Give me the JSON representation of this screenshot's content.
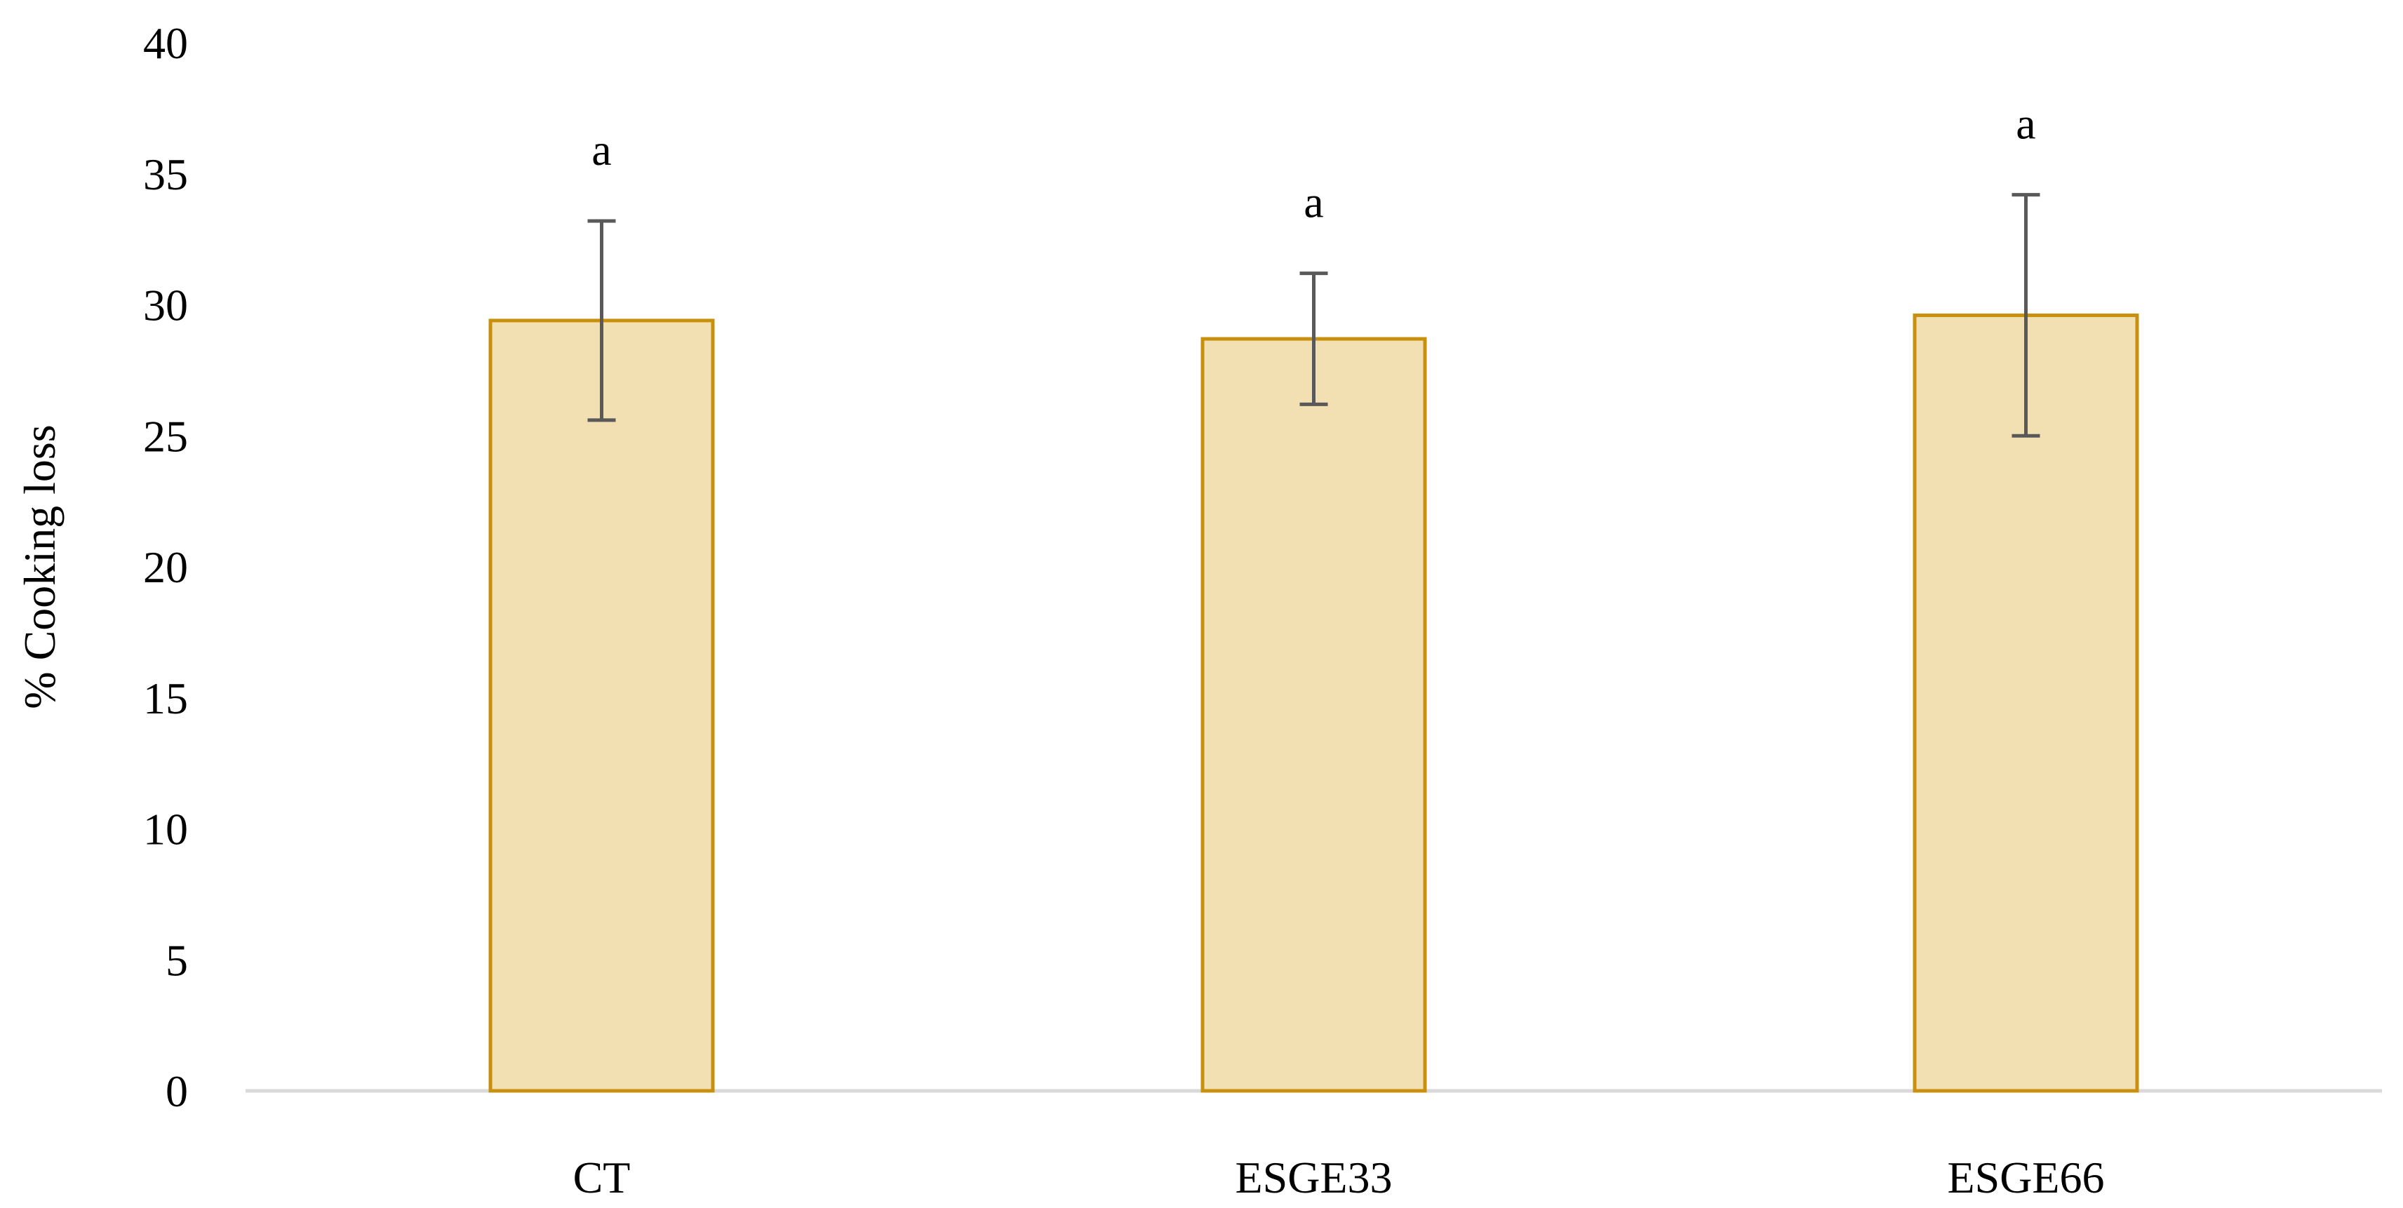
{
  "chart_data": {
    "type": "bar",
    "title": "",
    "xlabel": "",
    "ylabel": "% Cooking loss",
    "ylim": [
      0,
      40
    ],
    "yticks": [
      "0",
      "5",
      "10",
      "15",
      "20",
      "25",
      "30",
      "35",
      "40"
    ],
    "grid": false,
    "legend": "none",
    "categories": [
      "CT",
      "ESGE33",
      "ESGE66"
    ],
    "values": [
      29.4,
      28.7,
      29.6
    ],
    "error": [
      3.8,
      2.5,
      4.6
    ],
    "significance": [
      "a",
      "a",
      "a"
    ],
    "colors": {
      "bar_fill": "#F2DFB2",
      "bar_stroke": "#C9900E",
      "error_bar": "#595959",
      "axis_line": "#D9D9D9"
    }
  }
}
